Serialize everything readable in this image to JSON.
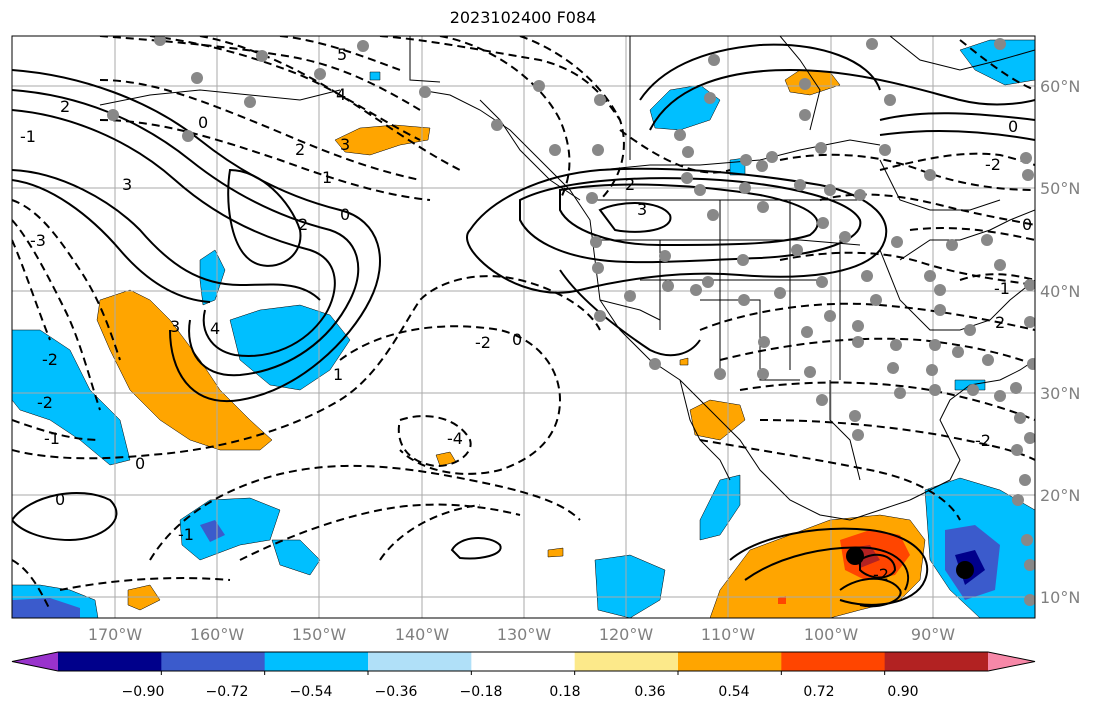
{
  "title": "2023102400 F084",
  "latitude_labels": [
    "60°N",
    "50°N",
    "40°N",
    "30°N",
    "20°N",
    "10°N"
  ],
  "longitude_labels": [
    "170°W",
    "160°W",
    "150°W",
    "140°W",
    "130°W",
    "120°W",
    "110°W",
    "100°W",
    "90°W"
  ],
  "colorbar": {
    "colors": [
      "#9933cc",
      "#00008b",
      "#3b5bcc",
      "#00bfff",
      "#b0e0f8",
      "#ffffff",
      "#fce98a",
      "#ffa500",
      "#ff4500",
      "#b22222",
      "#f788a8"
    ],
    "tick_labels": [
      "−0.90",
      "−0.72",
      "−0.54",
      "−0.36",
      "−0.18",
      "0.18",
      "0.36",
      "0.54",
      "0.72",
      "0.90"
    ]
  },
  "contour_labels": [
    "5",
    "4",
    "3",
    "2",
    "1",
    "0",
    "-2",
    "-1",
    "3",
    "2",
    "0",
    "-3",
    "3",
    "4",
    "1",
    "-1",
    "0",
    "-2",
    "-2",
    "-1",
    "0",
    "2",
    "3",
    "2",
    "0",
    "-2",
    "-1",
    "2",
    "0",
    "-2",
    "-4",
    "0",
    "-2"
  ],
  "colors": {
    "station_dot": "#888888",
    "grid": "#aaaaaa",
    "positive_fill": "#ffa500",
    "negative_fill": "#00bfff"
  }
}
